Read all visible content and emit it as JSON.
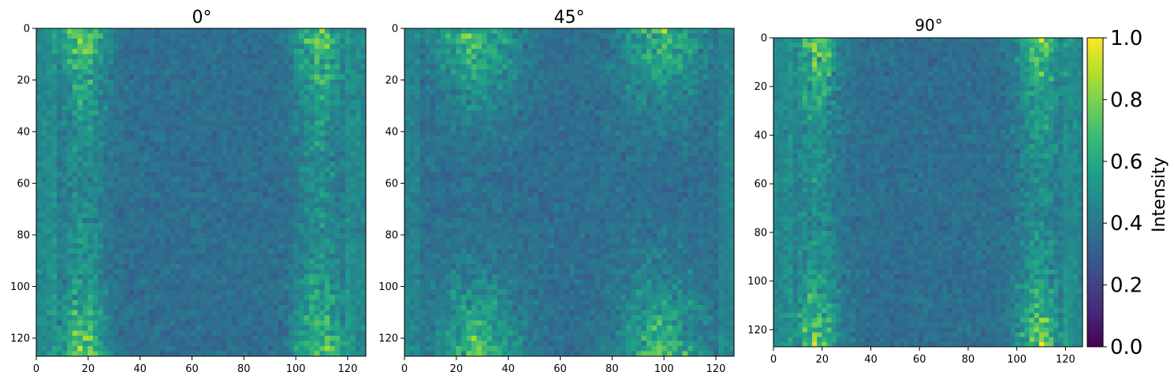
{
  "chart_data": [
    {
      "type": "heatmap",
      "title": "0°",
      "xlim": [
        0,
        127
      ],
      "ylim": [
        127,
        0
      ],
      "xticks": [
        "0",
        "20",
        "40",
        "60",
        "80",
        "100",
        "120"
      ],
      "yticks": [
        "0",
        "20",
        "40",
        "60",
        "80",
        "100",
        "120"
      ],
      "grid": false,
      "pattern": "noisy field, brighter vertical bands near x≈15–25 and x≈105–115, brightest at top and bottom rows; darker center"
    },
    {
      "type": "heatmap",
      "title": "45°",
      "xlim": [
        0,
        127
      ],
      "ylim": [
        127,
        0
      ],
      "xticks": [
        "0",
        "20",
        "40",
        "60",
        "80",
        "100",
        "120"
      ],
      "yticks": [
        "0",
        "20",
        "40",
        "60",
        "80",
        "100",
        "120"
      ],
      "grid": false,
      "pattern": "noisy field, bright diagonal-ish clusters at the four corners (x≈20–40 and x≈90–110 near top/bottom)"
    },
    {
      "type": "heatmap",
      "title": "90°",
      "xlim": [
        0,
        127
      ],
      "ylim": [
        127,
        0
      ],
      "xticks": [
        "0",
        "20",
        "40",
        "60",
        "80",
        "100",
        "120"
      ],
      "yticks": [
        "0",
        "20",
        "40",
        "60",
        "80",
        "100",
        "120"
      ],
      "grid": false,
      "pattern": "noisy field, brighter vertical bands near x≈15–25 and x≈105–115 near top/bottom"
    }
  ],
  "colorbar": {
    "label": "Intensity",
    "colormap": "viridis",
    "range": [
      0.0,
      1.0
    ],
    "ticks": [
      "0.0",
      "0.2",
      "0.4",
      "0.6",
      "0.8",
      "1.0"
    ],
    "stops": [
      "#440154",
      "#482878",
      "#3e4989",
      "#31688e",
      "#26828e",
      "#1f9e89",
      "#35b779",
      "#6ece58",
      "#b5de2b",
      "#fde725"
    ]
  }
}
